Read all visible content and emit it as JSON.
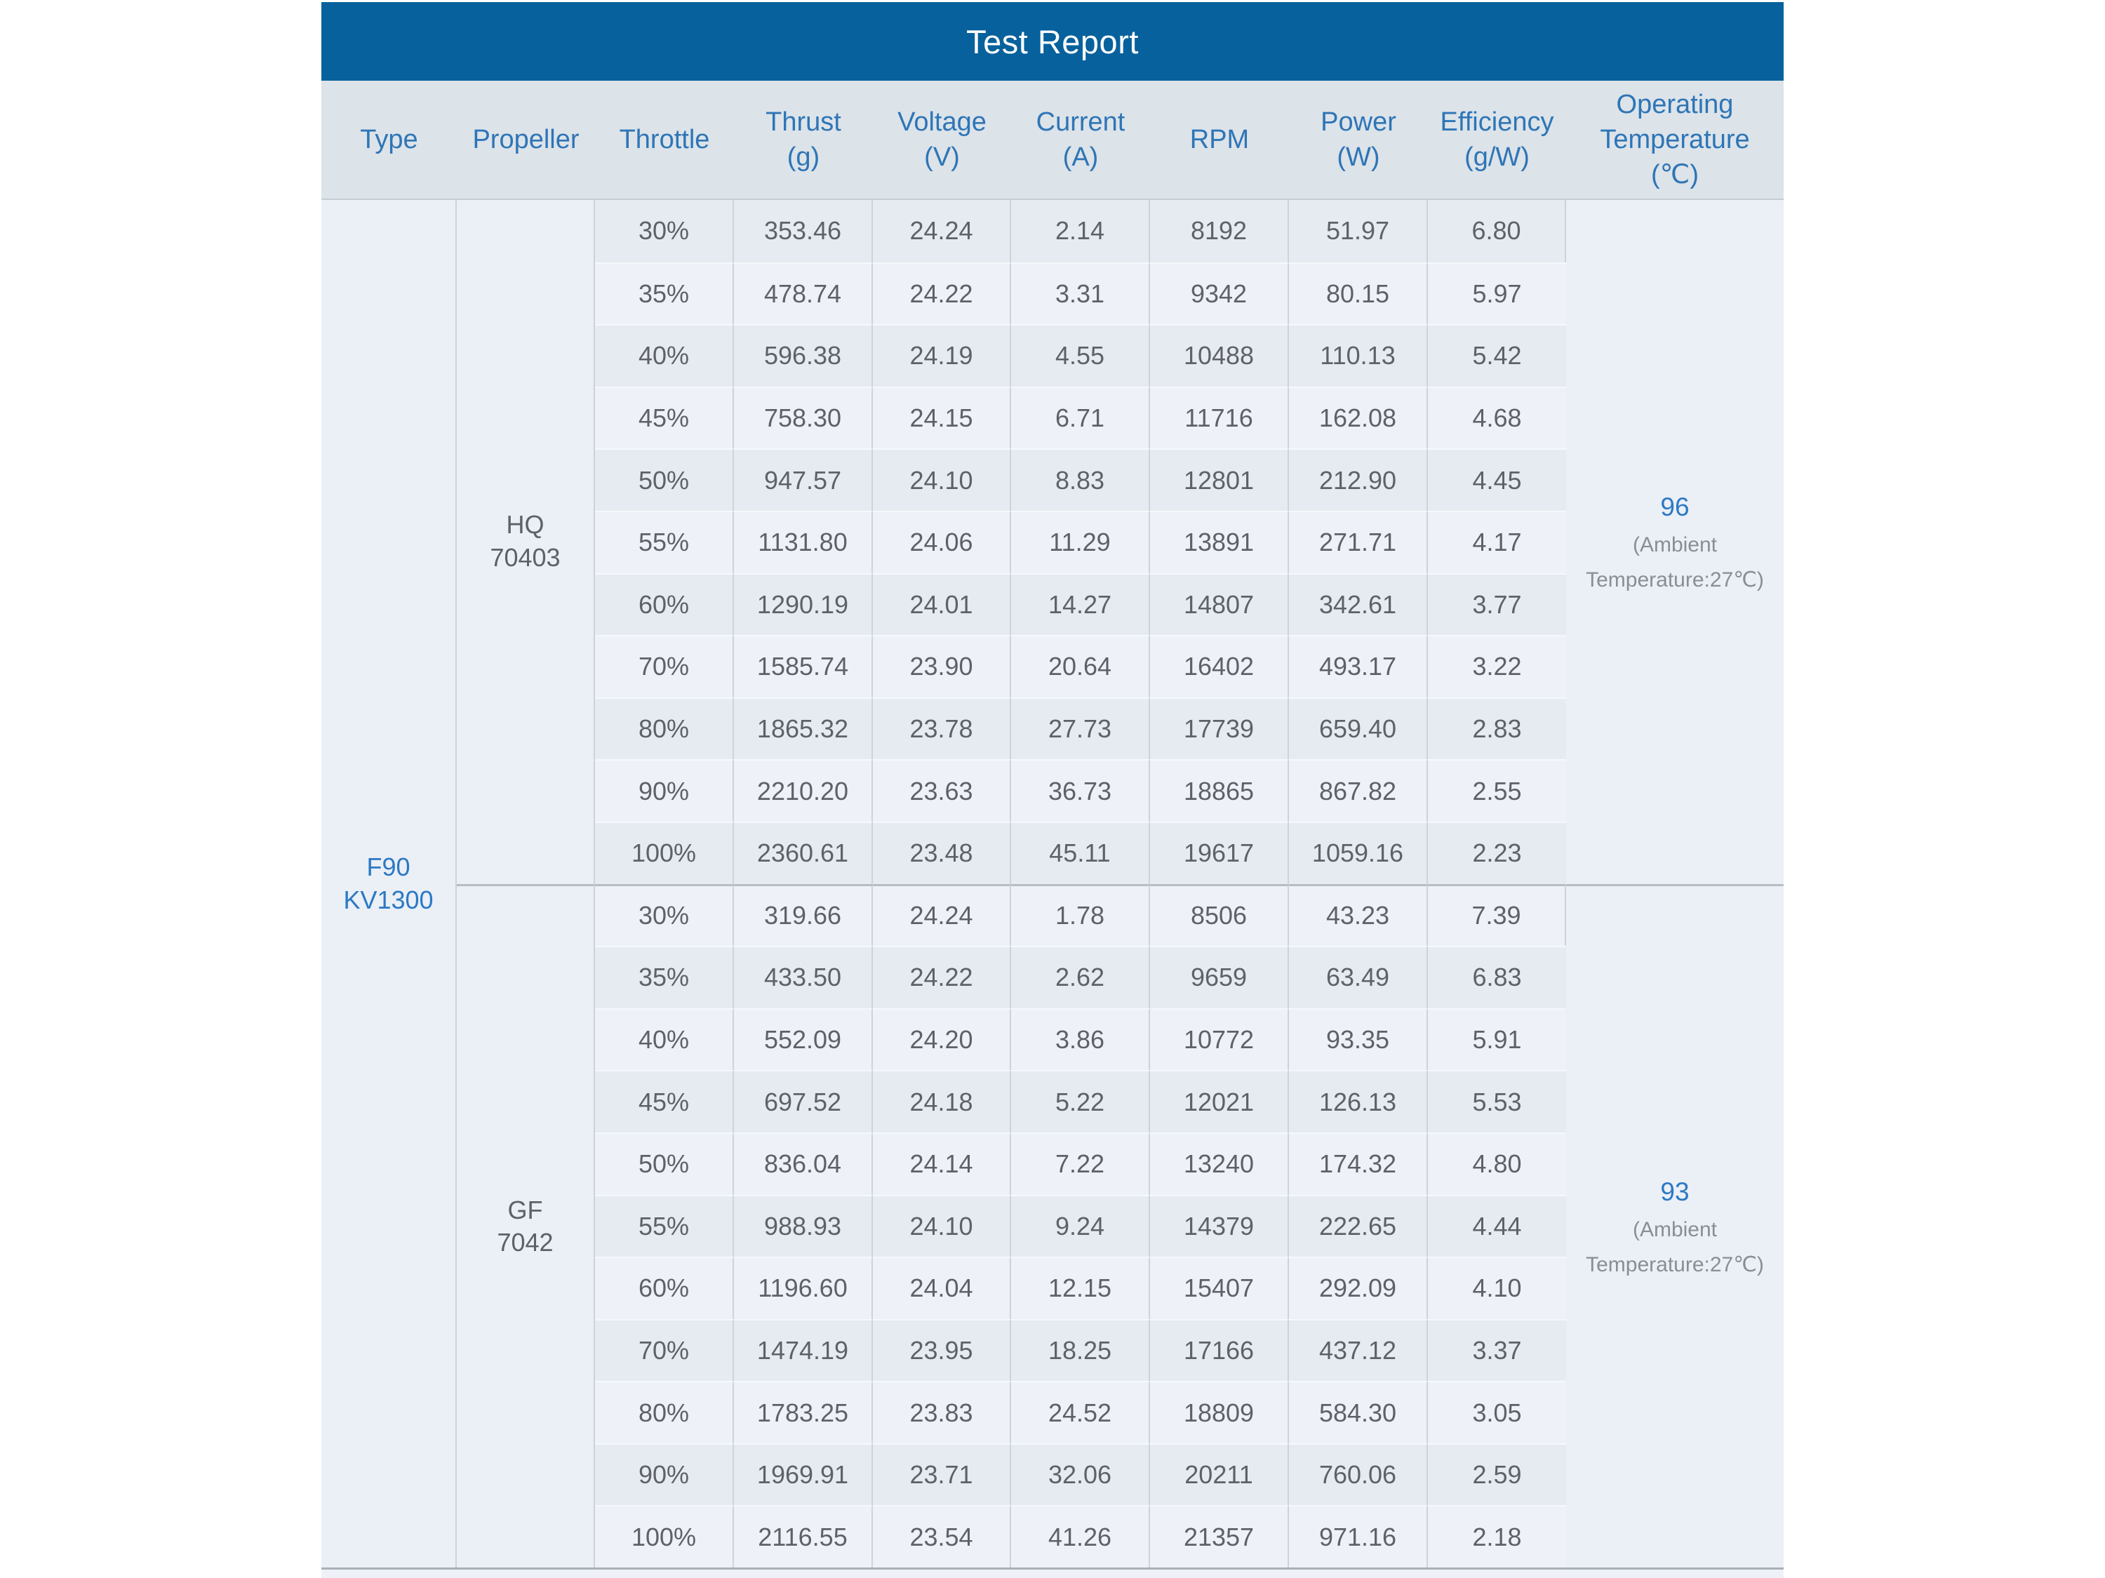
{
  "title": "Test Report",
  "columns": [
    {
      "name": "type",
      "lines": [
        "Type"
      ]
    },
    {
      "name": "propeller",
      "lines": [
        "Propeller"
      ]
    },
    {
      "name": "throttle",
      "lines": [
        "Throttle"
      ]
    },
    {
      "name": "thrust",
      "lines": [
        "Thrust",
        "(g)"
      ]
    },
    {
      "name": "voltage",
      "lines": [
        "Voltage",
        "(V)"
      ]
    },
    {
      "name": "current",
      "lines": [
        "Current",
        "(A)"
      ]
    },
    {
      "name": "rpm",
      "lines": [
        "RPM"
      ]
    },
    {
      "name": "power",
      "lines": [
        "Power",
        "(W)"
      ]
    },
    {
      "name": "efficiency",
      "lines": [
        "Efficiency",
        "(g/W)"
      ]
    },
    {
      "name": "operating-temperature",
      "lines": [
        "Operating",
        "Temperature",
        "(℃)"
      ]
    }
  ],
  "type_lines": [
    "F90",
    "KV1300"
  ],
  "sections": [
    {
      "propeller_lines": [
        "HQ",
        "70403"
      ],
      "temperature": {
        "value": "96",
        "note_lines": [
          "(Ambient",
          "Temperature:27℃)"
        ]
      },
      "rows": [
        {
          "throttle": "30%",
          "thrust": "353.46",
          "voltage": "24.24",
          "current": "2.14",
          "rpm": "8192",
          "power": "51.97",
          "efficiency": "6.80"
        },
        {
          "throttle": "35%",
          "thrust": "478.74",
          "voltage": "24.22",
          "current": "3.31",
          "rpm": "9342",
          "power": "80.15",
          "efficiency": "5.97"
        },
        {
          "throttle": "40%",
          "thrust": "596.38",
          "voltage": "24.19",
          "current": "4.55",
          "rpm": "10488",
          "power": "110.13",
          "efficiency": "5.42"
        },
        {
          "throttle": "45%",
          "thrust": "758.30",
          "voltage": "24.15",
          "current": "6.71",
          "rpm": "11716",
          "power": "162.08",
          "efficiency": "4.68"
        },
        {
          "throttle": "50%",
          "thrust": "947.57",
          "voltage": "24.10",
          "current": "8.83",
          "rpm": "12801",
          "power": "212.90",
          "efficiency": "4.45"
        },
        {
          "throttle": "55%",
          "thrust": "1131.80",
          "voltage": "24.06",
          "current": "11.29",
          "rpm": "13891",
          "power": "271.71",
          "efficiency": "4.17"
        },
        {
          "throttle": "60%",
          "thrust": "1290.19",
          "voltage": "24.01",
          "current": "14.27",
          "rpm": "14807",
          "power": "342.61",
          "efficiency": "3.77"
        },
        {
          "throttle": "70%",
          "thrust": "1585.74",
          "voltage": "23.90",
          "current": "20.64",
          "rpm": "16402",
          "power": "493.17",
          "efficiency": "3.22"
        },
        {
          "throttle": "80%",
          "thrust": "1865.32",
          "voltage": "23.78",
          "current": "27.73",
          "rpm": "17739",
          "power": "659.40",
          "efficiency": "2.83"
        },
        {
          "throttle": "90%",
          "thrust": "2210.20",
          "voltage": "23.63",
          "current": "36.73",
          "rpm": "18865",
          "power": "867.82",
          "efficiency": "2.55"
        },
        {
          "throttle": "100%",
          "thrust": "2360.61",
          "voltage": "23.48",
          "current": "45.11",
          "rpm": "19617",
          "power": "1059.16",
          "efficiency": "2.23"
        }
      ]
    },
    {
      "propeller_lines": [
        "GF",
        "7042"
      ],
      "temperature": {
        "value": "93",
        "note_lines": [
          "(Ambient",
          "Temperature:27℃)"
        ]
      },
      "rows": [
        {
          "throttle": "30%",
          "thrust": "319.66",
          "voltage": "24.24",
          "current": "1.78",
          "rpm": "8506",
          "power": "43.23",
          "efficiency": "7.39"
        },
        {
          "throttle": "35%",
          "thrust": "433.50",
          "voltage": "24.22",
          "current": "2.62",
          "rpm": "9659",
          "power": "63.49",
          "efficiency": "6.83"
        },
        {
          "throttle": "40%",
          "thrust": "552.09",
          "voltage": "24.20",
          "current": "3.86",
          "rpm": "10772",
          "power": "93.35",
          "efficiency": "5.91"
        },
        {
          "throttle": "45%",
          "thrust": "697.52",
          "voltage": "24.18",
          "current": "5.22",
          "rpm": "12021",
          "power": "126.13",
          "efficiency": "5.53"
        },
        {
          "throttle": "50%",
          "thrust": "836.04",
          "voltage": "24.14",
          "current": "7.22",
          "rpm": "13240",
          "power": "174.32",
          "efficiency": "4.80"
        },
        {
          "throttle": "55%",
          "thrust": "988.93",
          "voltage": "24.10",
          "current": "9.24",
          "rpm": "14379",
          "power": "222.65",
          "efficiency": "4.44"
        },
        {
          "throttle": "60%",
          "thrust": "1196.60",
          "voltage": "24.04",
          "current": "12.15",
          "rpm": "15407",
          "power": "292.09",
          "efficiency": "4.10"
        },
        {
          "throttle": "70%",
          "thrust": "1474.19",
          "voltage": "23.95",
          "current": "18.25",
          "rpm": "17166",
          "power": "437.12",
          "efficiency": "3.37"
        },
        {
          "throttle": "80%",
          "thrust": "1783.25",
          "voltage": "23.83",
          "current": "24.52",
          "rpm": "18809",
          "power": "584.30",
          "efficiency": "3.05"
        },
        {
          "throttle": "90%",
          "thrust": "1969.91",
          "voltage": "23.71",
          "current": "32.06",
          "rpm": "20211",
          "power": "760.06",
          "efficiency": "2.59"
        },
        {
          "throttle": "100%",
          "thrust": "2116.55",
          "voltage": "23.54",
          "current": "41.26",
          "rpm": "21357",
          "power": "971.16",
          "efficiency": "2.18"
        }
      ]
    }
  ],
  "colors": {
    "title_bar": "#07619c",
    "title_text": "#ffffff",
    "header_bg": "#dce3e9",
    "header_text": "#2e75b6",
    "row_dark": "#e6ebf1",
    "row_light": "#eef2f8",
    "span_cell_bg": "#ebeff6",
    "data_text": "#5e6267",
    "accent_blue": "#2b79c4",
    "note_gray": "#8a8e94"
  }
}
